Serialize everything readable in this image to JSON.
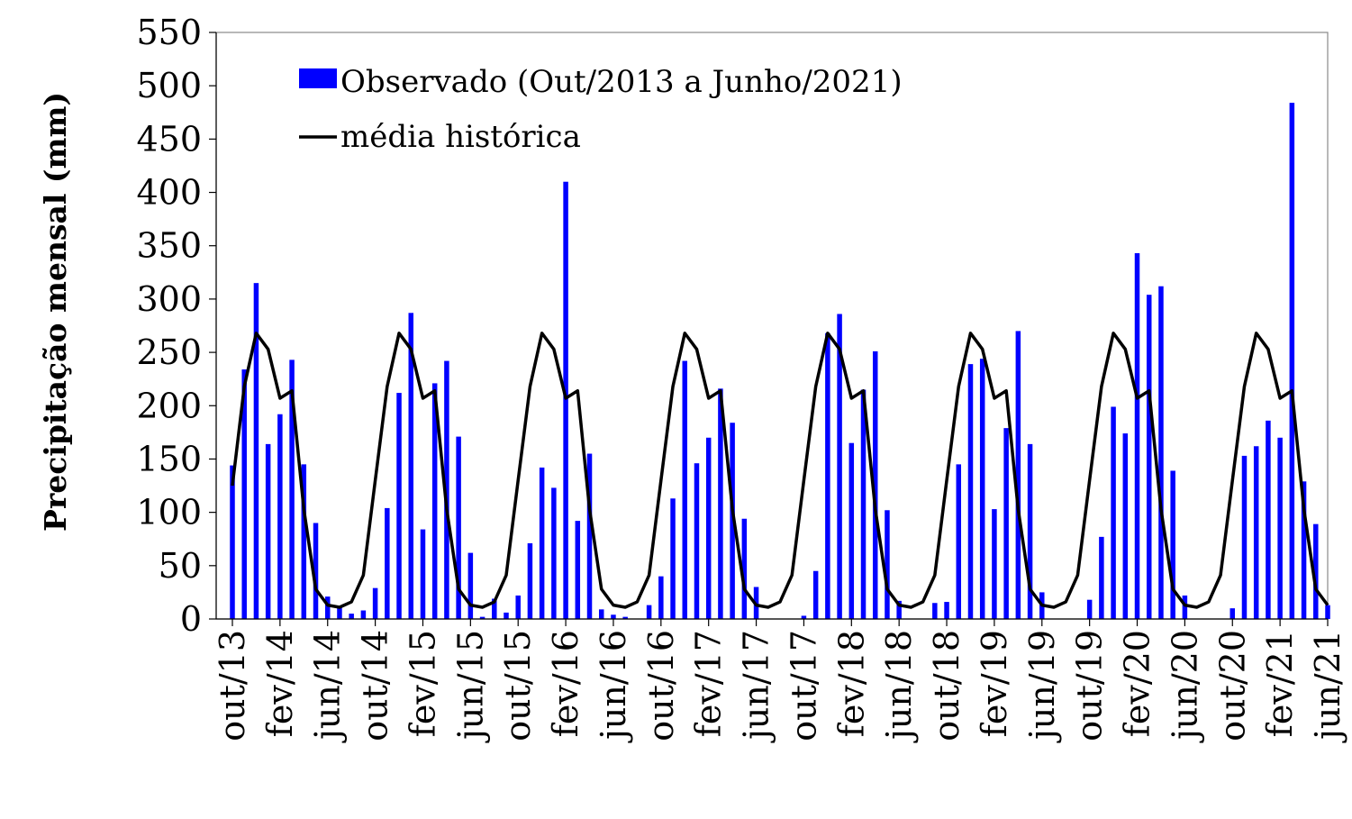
{
  "chart_data": {
    "type": "bar",
    "ylabel": "Precipitação mensal (mm)",
    "xlabel": "",
    "ylim": [
      0,
      550
    ],
    "yticks": [
      0,
      50,
      100,
      150,
      200,
      250,
      300,
      350,
      400,
      450,
      500,
      550
    ],
    "grid": false,
    "legend_position": "top-left",
    "x_tick_labels": [
      "out/13",
      "fev/14",
      "jun/14",
      "out/14",
      "fev/15",
      "jun/15",
      "out/15",
      "fev/16",
      "jun/16",
      "out/16",
      "fev/17",
      "jun/17",
      "out/17",
      "fev/18",
      "jun/18",
      "out/18",
      "fev/19",
      "jun/19",
      "out/19",
      "fev/20",
      "jun/20",
      "out/20",
      "fev/21",
      "jun/21"
    ],
    "months": [
      "out/13",
      "nov/13",
      "dez/13",
      "jan/14",
      "fev/14",
      "mar/14",
      "abr/14",
      "mai/14",
      "jun/14",
      "jul/14",
      "ago/14",
      "set/14",
      "out/14",
      "nov/14",
      "dez/14",
      "jan/15",
      "fev/15",
      "mar/15",
      "abr/15",
      "mai/15",
      "jun/15",
      "jul/15",
      "ago/15",
      "set/15",
      "out/15",
      "nov/15",
      "dez/15",
      "jan/16",
      "fev/16",
      "mar/16",
      "abr/16",
      "mai/16",
      "jun/16",
      "jul/16",
      "ago/16",
      "set/16",
      "out/16",
      "nov/16",
      "dez/16",
      "jan/17",
      "fev/17",
      "mar/17",
      "abr/17",
      "mai/17",
      "jun/17",
      "jul/17",
      "ago/17",
      "set/17",
      "out/17",
      "nov/17",
      "dez/17",
      "jan/18",
      "fev/18",
      "mar/18",
      "abr/18",
      "mai/18",
      "jun/18",
      "jul/18",
      "ago/18",
      "set/18",
      "out/18",
      "nov/18",
      "dez/18",
      "jan/19",
      "fev/19",
      "mar/19",
      "abr/19",
      "mai/19",
      "jun/19",
      "jul/19",
      "ago/19",
      "set/19",
      "out/19",
      "nov/19",
      "dez/19",
      "jan/20",
      "fev/20",
      "mar/20",
      "abr/20",
      "mai/20",
      "jun/20",
      "jul/20",
      "ago/20",
      "set/20",
      "out/20",
      "nov/20",
      "dez/20",
      "jan/21",
      "fev/21",
      "mar/21",
      "abr/21",
      "mai/21",
      "jun/21"
    ],
    "series": [
      {
        "name": "Observado (Out/2013 a Junho/2021)",
        "kind": "bar",
        "color": "#0000ff",
        "values": [
          144,
          234,
          315,
          164,
          192,
          243,
          145,
          90,
          21,
          12,
          5,
          8,
          29,
          104,
          212,
          287,
          84,
          221,
          242,
          171,
          62,
          2,
          19,
          6,
          22,
          71,
          142,
          123,
          410,
          92,
          155,
          9,
          4,
          2,
          0,
          13,
          40,
          113,
          242,
          146,
          170,
          216,
          184,
          94,
          30,
          0,
          0,
          0,
          3,
          45,
          268,
          286,
          165,
          215,
          251,
          102,
          17,
          0,
          0,
          15,
          16,
          145,
          239,
          244,
          103,
          179,
          270,
          164,
          25,
          0,
          0,
          0,
          18,
          77,
          199,
          174,
          343,
          304,
          312,
          139,
          22,
          0,
          0,
          0,
          10,
          153,
          162,
          186,
          170,
          484,
          129,
          89,
          13
        ]
      },
      {
        "name": "média histórica",
        "kind": "line",
        "color": "#000000",
        "values": [
          125,
          218,
          268,
          253,
          207,
          214,
          103,
          28,
          13,
          11,
          16,
          41,
          130,
          218,
          268,
          253,
          207,
          214,
          103,
          28,
          13,
          11,
          16,
          41,
          130,
          218,
          268,
          253,
          207,
          214,
          103,
          28,
          13,
          11,
          16,
          41,
          130,
          218,
          268,
          253,
          207,
          214,
          103,
          28,
          13,
          11,
          16,
          41,
          130,
          218,
          268,
          253,
          207,
          214,
          103,
          28,
          13,
          11,
          16,
          41,
          130,
          218,
          268,
          253,
          207,
          214,
          103,
          28,
          13,
          11,
          16,
          41,
          130,
          218,
          268,
          253,
          207,
          214,
          103,
          28,
          13,
          11,
          16,
          41,
          130,
          218,
          268,
          253,
          207,
          214,
          103,
          28,
          13
        ]
      }
    ]
  }
}
